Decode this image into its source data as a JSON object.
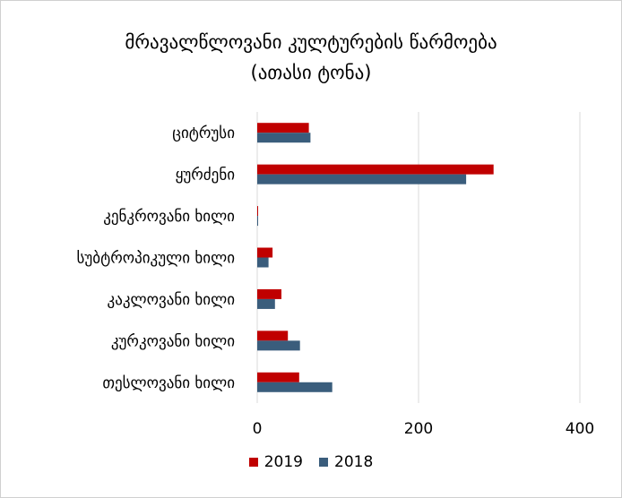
{
  "chart_data": {
    "type": "bar",
    "orientation": "horizontal",
    "title_line1": "მრავალწლოვანი კულტურების წარმოება",
    "title_line2": "(ათასი ტონა)",
    "categories": [
      "ციტრუსი",
      "ყურძენი",
      "კენკროვანი ხილი",
      "სუბტროპიკული ხილი",
      "კაკლოვანი ხილი",
      "კურკოვანი ხილი",
      "თესლოვანი ხილი"
    ],
    "series": [
      {
        "name": "2019",
        "color": "#c00000",
        "values": [
          64,
          293,
          1,
          19,
          30,
          38,
          52
        ]
      },
      {
        "name": "2018",
        "color": "#3a5d7c",
        "values": [
          66,
          259,
          1,
          14,
          22,
          53,
          93
        ]
      }
    ],
    "xlim": [
      0,
      400
    ],
    "xticks": [
      "0",
      "200",
      "400"
    ],
    "grid": "vertical",
    "legend_position": "bottom"
  }
}
